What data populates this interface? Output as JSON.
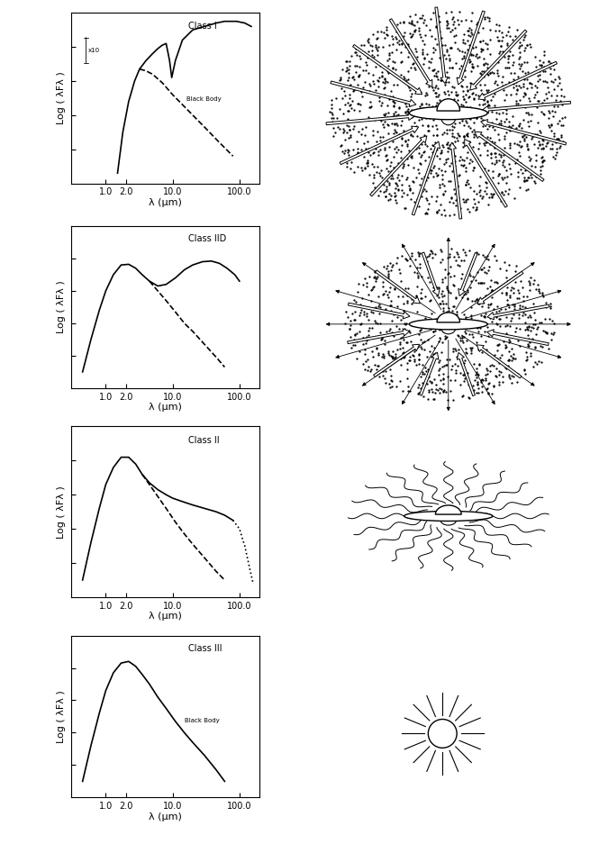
{
  "chart_data": [
    {
      "type": "line",
      "title": "Class I",
      "x_label": "λ (μm)",
      "y_label": "Log ( λFλ )",
      "log": "x",
      "tick_labels": "x",
      "xlim": [
        0.3,
        200
      ],
      "xticks": [
        1.0,
        2.0,
        10.0,
        100.0
      ],
      "ylim": [
        0,
        5
      ],
      "yticks": [
        1,
        2,
        3,
        4
      ],
      "series": [
        {
          "color": "#000000",
          "line_style": "solid",
          "x": [
            1.5,
            1.8,
            2.2,
            2.7,
            3.2,
            4.0,
            5.0,
            6.0,
            7.0,
            8.0,
            9.0,
            9.7,
            11,
            14,
            20,
            30,
            45,
            60,
            90,
            120,
            150
          ],
          "values": [
            0.3,
            1.5,
            2.4,
            3.0,
            3.35,
            3.6,
            3.8,
            3.95,
            4.05,
            4.1,
            3.6,
            3.1,
            3.6,
            4.2,
            4.5,
            4.6,
            4.7,
            4.75,
            4.75,
            4.7,
            4.6
          ]
        },
        {
          "color": "#000000",
          "line_style": "dashed",
          "x": [
            3.2,
            4.0,
            5.0,
            7.0,
            10,
            15,
            20,
            30,
            50,
            80
          ],
          "values": [
            3.35,
            3.3,
            3.2,
            2.95,
            2.6,
            2.25,
            2.0,
            1.65,
            1.2,
            0.8
          ]
        }
      ],
      "annotations": [
        {
          "text": "Black Body",
          "x": 16,
          "y": 2.4
        },
        {
          "text": "x10",
          "x": 0.55,
          "y": 3.9
        }
      ]
    },
    {
      "type": "line",
      "title": "Class IID",
      "x_label": "λ (μm)",
      "y_label": "Log ( λFλ )",
      "log": "x",
      "tick_labels": "x",
      "xlim": [
        0.3,
        200
      ],
      "xticks": [
        1.0,
        2.0,
        10.0,
        100.0
      ],
      "ylim": [
        0,
        5
      ],
      "yticks": [
        1,
        2,
        3,
        4
      ],
      "series": [
        {
          "color": "#000000",
          "line_style": "solid",
          "x": [
            0.45,
            0.6,
            0.8,
            1.0,
            1.3,
            1.7,
            2.2,
            2.8,
            3.5,
            4.5,
            6.0,
            8.0,
            11,
            15,
            20,
            28,
            38,
            50,
            65,
            85,
            100
          ],
          "values": [
            0.5,
            1.5,
            2.4,
            3.0,
            3.5,
            3.8,
            3.82,
            3.7,
            3.5,
            3.3,
            3.15,
            3.2,
            3.4,
            3.65,
            3.8,
            3.9,
            3.92,
            3.85,
            3.7,
            3.5,
            3.3
          ]
        },
        {
          "color": "#000000",
          "line_style": "dashed",
          "x": [
            4.5,
            6.0,
            8.0,
            11,
            15,
            20,
            30,
            45,
            60
          ],
          "values": [
            3.3,
            3.0,
            2.7,
            2.35,
            2.0,
            1.75,
            1.35,
            0.95,
            0.65
          ]
        }
      ]
    },
    {
      "type": "line",
      "title": "Class II",
      "x_label": "λ (μm)",
      "y_label": "Log ( λFλ )",
      "log": "x",
      "tick_labels": "x",
      "xlim": [
        0.3,
        200
      ],
      "xticks": [
        1.0,
        2.0,
        10.0,
        100.0
      ],
      "ylim": [
        0,
        5
      ],
      "yticks": [
        1,
        2,
        3,
        4
      ],
      "series": [
        {
          "color": "#000000",
          "line_style": "solid",
          "x": [
            0.45,
            0.6,
            0.8,
            1.0,
            1.3,
            1.7,
            2.2,
            2.8,
            3.5,
            4.5,
            6.0,
            8.0,
            10,
            14,
            20,
            30,
            45,
            60,
            80
          ],
          "values": [
            0.5,
            1.6,
            2.6,
            3.3,
            3.8,
            4.1,
            4.1,
            3.9,
            3.6,
            3.35,
            3.15,
            3.0,
            2.9,
            2.8,
            2.7,
            2.6,
            2.5,
            2.4,
            2.25
          ]
        },
        {
          "color": "#000000",
          "line_style": "dotted",
          "x": [
            80,
            100,
            120,
            140,
            160
          ],
          "values": [
            2.25,
            2.0,
            1.5,
            0.9,
            0.4
          ]
        },
        {
          "color": "#000000",
          "line_style": "dashed",
          "x": [
            3.5,
            4.5,
            6.0,
            8.0,
            11,
            15,
            20,
            30,
            45,
            60
          ],
          "values": [
            3.6,
            3.3,
            2.95,
            2.6,
            2.2,
            1.85,
            1.55,
            1.15,
            0.75,
            0.5
          ]
        }
      ]
    },
    {
      "type": "line",
      "title": "Class III",
      "x_label": "λ (μm)",
      "y_label": "Log ( λFλ )",
      "log": "x",
      "tick_labels": "x",
      "xlim": [
        0.3,
        200
      ],
      "xticks": [
        1.0,
        2.0,
        10.0,
        100.0
      ],
      "ylim": [
        0,
        5
      ],
      "yticks": [
        1,
        2,
        3,
        4
      ],
      "series": [
        {
          "color": "#000000",
          "line_style": "solid",
          "x": [
            0.45,
            0.6,
            0.8,
            1.0,
            1.3,
            1.7,
            2.2,
            2.8,
            3.5,
            4.5,
            6.0,
            8.0,
            11,
            15,
            20,
            30,
            45,
            60
          ],
          "values": [
            0.5,
            1.6,
            2.6,
            3.3,
            3.85,
            4.15,
            4.2,
            4.05,
            3.8,
            3.5,
            3.1,
            2.75,
            2.35,
            2.0,
            1.7,
            1.3,
            0.85,
            0.5
          ]
        }
      ],
      "annotations": [
        {
          "text": "Black Body",
          "x": 15,
          "y": 2.3
        }
      ]
    }
  ]
}
